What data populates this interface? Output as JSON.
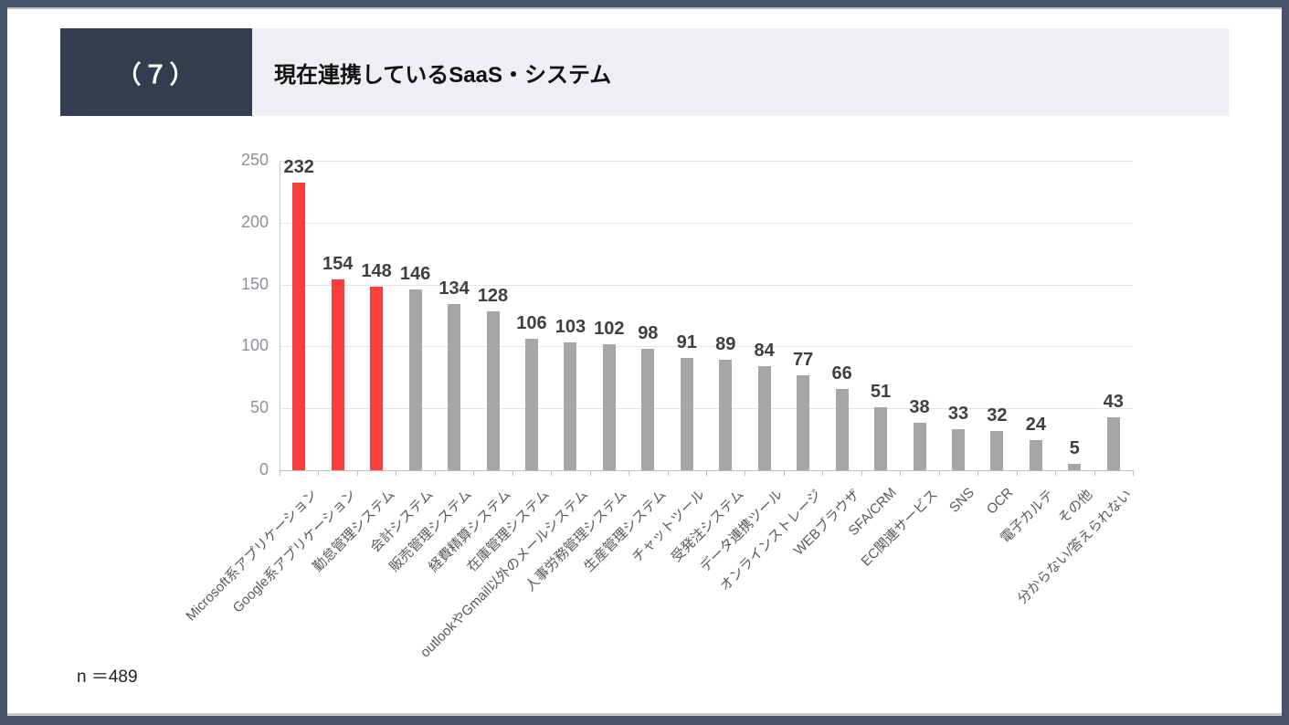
{
  "header": {
    "number": "（７）",
    "title": "現在連携しているSaaS・システム"
  },
  "footnote": "n ＝489",
  "colors": {
    "frame": "#475469",
    "header_box": "#323E4F",
    "header_bar_bg": "#EDEFF2",
    "highlight_bar": "#FA3E3E",
    "default_bar": "#A6A6A6",
    "grid": "#E4E4E4",
    "axis": "#BFBFBF",
    "value_label": "#3F3F3F",
    "y_tick_label": "#8C9199",
    "category_label": "#595959"
  },
  "chart_data": {
    "type": "bar",
    "title": "現在連携しているSaaS・システム",
    "categories": [
      "Microsoft系アプリケーション",
      "Google系アプリケーション",
      "勤怠管理システム",
      "会計システム",
      "販売管理システム",
      "経費精算システム",
      "在庫管理システム",
      "outlookやGmail以外のメールシステム",
      "人事労務管理システム",
      "生産管理システム",
      "チャットツール",
      "受発注システム",
      "データ連携ツール",
      "オンラインストレージ",
      "WEBブラウザ",
      "SFA/CRM",
      "EC関連サービス",
      "SNS",
      "OCR",
      "電子カルテ",
      "その他",
      "分からない/答えられない"
    ],
    "values": [
      232,
      154,
      148,
      146,
      134,
      128,
      106,
      103,
      102,
      98,
      91,
      89,
      84,
      77,
      66,
      51,
      38,
      33,
      32,
      24,
      5,
      43
    ],
    "highlighted_count": 3,
    "ylim": [
      0,
      250
    ],
    "yticks": [
      0,
      50,
      100,
      150,
      200,
      250
    ],
    "grid": true,
    "legend": false,
    "value_labels": true
  }
}
